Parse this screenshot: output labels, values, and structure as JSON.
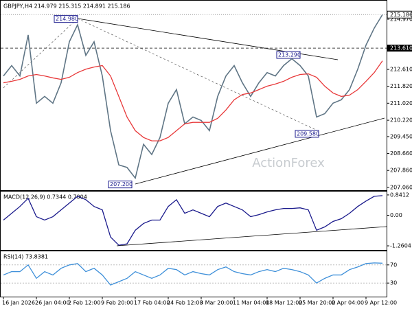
{
  "chart_data": [
    {
      "type": "line",
      "title": "GBPJPY,H4  214.979 215.315 214.891 215.186",
      "watermark": "ActionForex",
      "categories": [
        "16 Jan 2026",
        null,
        null,
        null,
        "26 Jan 04:00",
        null,
        null,
        null,
        "2 Feb 12:00",
        null,
        null,
        null,
        "9 Feb 20:00",
        null,
        null,
        null,
        "17 Feb 04:00",
        null,
        null,
        null,
        "24 Feb 12:00",
        null,
        null,
        null,
        "3 Mar 20:00",
        null,
        null,
        null,
        "11 Mar 04:00",
        null,
        null,
        null,
        "18 Mar 12:00",
        null,
        null,
        null,
        "25 Mar 20:00",
        null,
        null,
        null,
        "2 Apr 04:00",
        null,
        null,
        null,
        "9 Apr 12:00",
        null,
        null
      ],
      "series": [
        {
          "color": "#5f7585",
          "values": [
            212.3,
            212.79,
            212.3,
            214.23,
            211.02,
            211.34,
            211.02,
            211.98,
            213.91,
            214.71,
            213.27,
            213.91,
            212.3,
            209.73,
            208.12,
            208.0,
            207.5,
            209.09,
            208.61,
            209.41,
            211.02,
            211.66,
            210.05,
            210.37,
            210.21,
            209.73,
            211.34,
            212.3,
            212.79,
            211.98,
            211.34,
            211.98,
            212.46,
            212.3,
            212.79,
            213.11,
            212.79,
            212.3,
            210.37,
            210.53,
            211.02,
            211.18,
            211.66,
            212.62,
            213.75,
            214.55,
            215.186
          ]
        },
        {
          "color": "#e8393a",
          "values": [
            211.98,
            212.05,
            212.14,
            212.3,
            212.37,
            212.3,
            212.21,
            212.14,
            212.24,
            212.46,
            212.62,
            212.72,
            212.79,
            212.3,
            211.34,
            210.37,
            209.73,
            209.41,
            209.25,
            209.25,
            209.41,
            209.73,
            210.05,
            210.12,
            210.12,
            210.12,
            210.31,
            210.7,
            211.18,
            211.43,
            211.5,
            211.66,
            211.82,
            211.92,
            212.05,
            212.24,
            212.37,
            212.4,
            212.24,
            211.82,
            211.5,
            211.34,
            211.4,
            211.66,
            212.05,
            212.46,
            213.01
          ]
        }
      ],
      "ylim": [
        206.93,
        215.84
      ],
      "yticks": [
        {
          "value": 207.06,
          "label": "207.060"
        },
        {
          "value": 207.86,
          "label": "207.860"
        },
        {
          "value": 208.66,
          "label": "208.660"
        },
        {
          "value": 209.45,
          "label": "209.450"
        },
        {
          "value": 210.22,
          "label": "210.220"
        },
        {
          "value": 211.02,
          "label": "211.020"
        },
        {
          "value": 211.82,
          "label": "211.820"
        },
        {
          "value": 212.61,
          "label": "212.610"
        },
        {
          "value": 214.97,
          "label": "214.970"
        }
      ],
      "last_price": 215.186,
      "level": {
        "value": 213.61,
        "label": "213.610"
      },
      "annotations": [
        {
          "value": 214.98,
          "label": "214.980"
        },
        {
          "value": 213.29,
          "label": "213.290"
        },
        {
          "value": 209.58,
          "label": "209.580"
        },
        {
          "value": 207.2,
          "label": "207.200"
        }
      ]
    },
    {
      "type": "line",
      "title": "MACD(12,26,9) 0.7344 0.7004",
      "series": [
        {
          "color": "#1a1a8c",
          "values": [
            -0.196,
            0.084,
            0.365,
            0.701,
            -0.056,
            -0.196,
            -0.056,
            0.224,
            0.505,
            0.785,
            0.645,
            0.365,
            0.224,
            -0.897,
            -1.234,
            -1.178,
            -0.617,
            -0.337,
            -0.196,
            -0.196,
            0.365,
            0.645,
            0.084,
            0.224,
            0.084,
            -0.056,
            0.365,
            0.505,
            0.365,
            0.224,
            -0.056,
            0.028,
            0.14,
            0.224,
            0.281,
            0.281,
            0.308,
            0.224,
            -0.617,
            -0.477,
            -0.252,
            -0.14,
            0.084,
            0.365,
            0.589,
            0.785,
            0.813
          ]
        }
      ],
      "ylim": [
        -1.458,
        0.98
      ],
      "yticks": [
        0.8412,
        {
          "value": 0,
          "label": "0.00"
        },
        -1.2604
      ]
    },
    {
      "type": "line",
      "title": "RSI(14) 73.8381",
      "series": [
        {
          "color": "#3d8fd9",
          "values": [
            47.8,
            55.2,
            55.2,
            70,
            40.4,
            55.2,
            47.8,
            62.6,
            70,
            73,
            55.2,
            62.6,
            47.8,
            25.6,
            33,
            40.4,
            55.2,
            47.8,
            40.4,
            47.8,
            62.6,
            59.6,
            47.8,
            55.2,
            50.7,
            47.8,
            59.6,
            65.6,
            55.2,
            50.7,
            47.8,
            55.2,
            59.6,
            55.2,
            62.6,
            59.6,
            55.2,
            47.8,
            30,
            40.4,
            47.8,
            47.8,
            59.6,
            65.6,
            73,
            74.4,
            73.8
          ]
        }
      ],
      "ylim": [
        0,
        100
      ],
      "yticks": [
        70,
        30
      ]
    }
  ]
}
